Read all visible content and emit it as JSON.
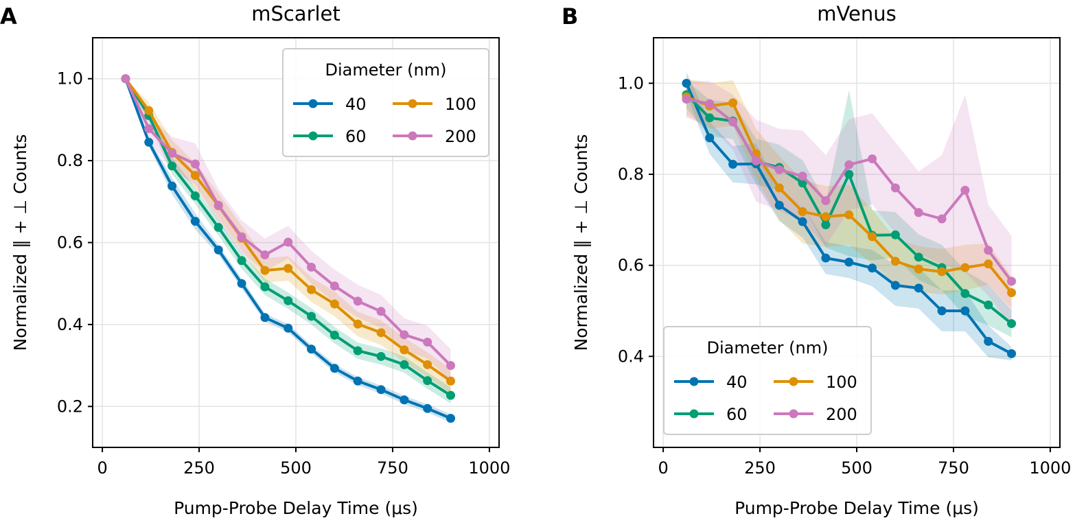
{
  "chart_data": [
    {
      "type": "line",
      "panel_label": "A",
      "title": "mScarlet",
      "xlabel": "Pump-Probe Delay Time (μs)",
      "ylabel": "Normalized ‖ + ⊥ Counts",
      "xlim": [
        -25,
        1025
      ],
      "ylim": [
        0.1,
        1.1
      ],
      "xticks": [
        0,
        250,
        500,
        750,
        1000
      ],
      "yticks": [
        0.2,
        0.4,
        0.6,
        0.8,
        1.0
      ],
      "xtick_labels": [
        "0",
        "250",
        "500",
        "750",
        "1000"
      ],
      "ytick_labels": [
        "0.2",
        "0.4",
        "0.6",
        "0.8",
        "1.0"
      ],
      "grid": true,
      "legend": {
        "title": "Diameter (nm)",
        "placement": "top-right",
        "columns": 2
      },
      "x": [
        60,
        120,
        180,
        240,
        300,
        360,
        420,
        480,
        540,
        600,
        660,
        720,
        780,
        840,
        900
      ],
      "series": [
        {
          "name": "40",
          "color": "#0173b2",
          "values": [
            1.0,
            0.845,
            0.738,
            0.652,
            0.582,
            0.5,
            0.417,
            0.391,
            0.34,
            0.293,
            0.262,
            0.241,
            0.216,
            0.195,
            0.171
          ],
          "lower": [
            1.0,
            0.835,
            0.718,
            0.632,
            0.57,
            0.488,
            0.407,
            0.381,
            0.33,
            0.283,
            0.252,
            0.231,
            0.206,
            0.185,
            0.161
          ],
          "upper": [
            1.0,
            0.855,
            0.758,
            0.672,
            0.594,
            0.512,
            0.427,
            0.401,
            0.35,
            0.303,
            0.272,
            0.251,
            0.226,
            0.205,
            0.181
          ]
        },
        {
          "name": "60",
          "color": "#029e73",
          "values": [
            1.0,
            0.91,
            0.787,
            0.714,
            0.637,
            0.556,
            0.492,
            0.458,
            0.42,
            0.374,
            0.336,
            0.322,
            0.302,
            0.263,
            0.227
          ],
          "lower": [
            1.0,
            0.895,
            0.767,
            0.694,
            0.617,
            0.536,
            0.472,
            0.438,
            0.4,
            0.354,
            0.316,
            0.302,
            0.282,
            0.243,
            0.207
          ],
          "upper": [
            1.0,
            0.925,
            0.807,
            0.734,
            0.657,
            0.576,
            0.512,
            0.478,
            0.44,
            0.394,
            0.356,
            0.342,
            0.322,
            0.283,
            0.247
          ]
        },
        {
          "name": "100",
          "color": "#de8f05",
          "values": [
            1.0,
            0.922,
            0.82,
            0.764,
            0.69,
            0.611,
            0.532,
            0.537,
            0.485,
            0.45,
            0.401,
            0.38,
            0.338,
            0.302,
            0.262
          ],
          "lower": [
            1.0,
            0.902,
            0.79,
            0.734,
            0.66,
            0.581,
            0.502,
            0.507,
            0.455,
            0.42,
            0.371,
            0.35,
            0.308,
            0.272,
            0.232
          ],
          "upper": [
            1.0,
            0.942,
            0.85,
            0.794,
            0.72,
            0.641,
            0.562,
            0.567,
            0.515,
            0.48,
            0.431,
            0.41,
            0.368,
            0.332,
            0.292
          ]
        },
        {
          "name": "200",
          "color": "#cc78bc",
          "values": [
            1.0,
            0.878,
            0.818,
            0.792,
            0.691,
            0.614,
            0.57,
            0.601,
            0.54,
            0.494,
            0.457,
            0.432,
            0.375,
            0.357,
            0.3
          ],
          "lower": [
            1.0,
            0.848,
            0.778,
            0.742,
            0.651,
            0.574,
            0.53,
            0.561,
            0.5,
            0.454,
            0.417,
            0.392,
            0.335,
            0.317,
            0.26
          ],
          "upper": [
            1.0,
            0.908,
            0.858,
            0.842,
            0.731,
            0.654,
            0.61,
            0.641,
            0.58,
            0.534,
            0.497,
            0.472,
            0.415,
            0.397,
            0.34
          ]
        }
      ]
    },
    {
      "type": "line",
      "panel_label": "B",
      "title": "mVenus",
      "xlabel": "Pump-Probe Delay Time (μs)",
      "ylabel": "Normalized ‖ + ⊥ Counts",
      "xlim": [
        -25,
        1025
      ],
      "ylim": [
        0.2,
        1.1
      ],
      "xticks": [
        0,
        250,
        500,
        750,
        1000
      ],
      "yticks": [
        0.4,
        0.6,
        0.8,
        1.0
      ],
      "xtick_labels": [
        "0",
        "250",
        "500",
        "750",
        "1000"
      ],
      "ytick_labels": [
        "0.4",
        "0.6",
        "0.8",
        "1.0"
      ],
      "grid": true,
      "legend": {
        "title": "Diameter (nm)",
        "placement": "bottom-left",
        "columns": 2
      },
      "x": [
        60,
        120,
        180,
        240,
        300,
        360,
        420,
        480,
        540,
        600,
        660,
        720,
        780,
        840,
        900
      ],
      "series": [
        {
          "name": "40",
          "color": "#0173b2",
          "values": [
            1.0,
            0.88,
            0.822,
            0.823,
            0.732,
            0.696,
            0.616,
            0.607,
            0.594,
            0.556,
            0.55,
            0.5,
            0.5,
            0.433,
            0.406
          ],
          "lower": [
            0.975,
            0.845,
            0.782,
            0.778,
            0.697,
            0.661,
            0.581,
            0.572,
            0.554,
            0.511,
            0.505,
            0.455,
            0.455,
            0.398,
            0.391
          ],
          "upper": [
            1.025,
            0.915,
            0.862,
            0.868,
            0.767,
            0.731,
            0.651,
            0.642,
            0.634,
            0.601,
            0.595,
            0.545,
            0.545,
            0.468,
            0.421
          ]
        },
        {
          "name": "60",
          "color": "#029e73",
          "values": [
            0.975,
            0.924,
            0.917,
            0.828,
            0.815,
            0.781,
            0.689,
            0.8,
            0.666,
            0.667,
            0.618,
            0.595,
            0.538,
            0.513,
            0.472
          ],
          "lower": [
            0.945,
            0.884,
            0.877,
            0.778,
            0.765,
            0.731,
            0.639,
            0.62,
            0.611,
            0.617,
            0.568,
            0.545,
            0.488,
            0.468,
            0.442
          ],
          "upper": [
            1.005,
            0.964,
            0.957,
            0.878,
            0.865,
            0.831,
            0.739,
            0.985,
            0.721,
            0.717,
            0.668,
            0.645,
            0.588,
            0.558,
            0.502
          ]
        },
        {
          "name": "100",
          "color": "#de8f05",
          "values": [
            0.97,
            0.95,
            0.957,
            0.845,
            0.77,
            0.718,
            0.707,
            0.711,
            0.663,
            0.609,
            0.592,
            0.586,
            0.595,
            0.603,
            0.54
          ],
          "lower": [
            0.93,
            0.9,
            0.907,
            0.79,
            0.7,
            0.648,
            0.64,
            0.645,
            0.603,
            0.559,
            0.542,
            0.536,
            0.545,
            0.558,
            0.505
          ],
          "upper": [
            1.01,
            1.0,
            1.007,
            0.9,
            0.84,
            0.788,
            0.774,
            0.777,
            0.723,
            0.659,
            0.642,
            0.636,
            0.645,
            0.648,
            0.575
          ]
        },
        {
          "name": "200",
          "color": "#cc78bc",
          "values": [
            0.965,
            0.955,
            0.915,
            0.83,
            0.81,
            0.796,
            0.742,
            0.821,
            0.834,
            0.77,
            0.716,
            0.702,
            0.765,
            0.633,
            0.565
          ],
          "lower": [
            0.925,
            0.905,
            0.855,
            0.74,
            0.72,
            0.696,
            0.642,
            0.721,
            0.734,
            0.67,
            0.626,
            0.602,
            0.585,
            0.533,
            0.465
          ],
          "upper": [
            1.005,
            1.005,
            0.975,
            0.92,
            0.9,
            0.896,
            0.842,
            0.921,
            0.934,
            0.87,
            0.806,
            0.842,
            0.975,
            0.733,
            0.665
          ]
        }
      ]
    }
  ]
}
